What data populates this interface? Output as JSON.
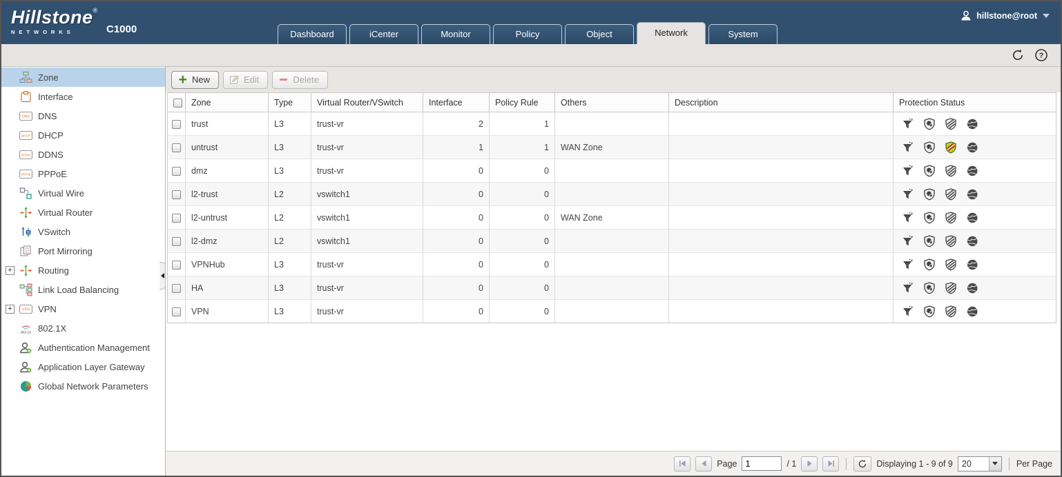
{
  "header": {
    "brand_name": "Hillstone",
    "brand_trademark": "®",
    "brand_sub": "NETWORKS",
    "model": "C1000",
    "user": "hillstone@root",
    "user_icon": "user-icon",
    "tabs": [
      {
        "label": "Dashboard",
        "active": false
      },
      {
        "label": "iCenter",
        "active": false
      },
      {
        "label": "Monitor",
        "active": false
      },
      {
        "label": "Policy",
        "active": false
      },
      {
        "label": "Object",
        "active": false
      },
      {
        "label": "Network",
        "active": true
      },
      {
        "label": "System",
        "active": false
      }
    ]
  },
  "substrip": {
    "icons": [
      "refresh-icon",
      "help-icon"
    ]
  },
  "sidebar": {
    "items": [
      {
        "label": "Zone",
        "icon": "zone-icon",
        "selected": true
      },
      {
        "label": "Interface",
        "icon": "interface-icon"
      },
      {
        "label": "DNS",
        "icon": "dns-box-icon"
      },
      {
        "label": "DHCP",
        "icon": "dhcp-box-icon"
      },
      {
        "label": "DDNS",
        "icon": "ddns-box-icon"
      },
      {
        "label": "PPPoE",
        "icon": "pppoe-box-icon"
      },
      {
        "label": "Virtual Wire",
        "icon": "virtual-wire-icon"
      },
      {
        "label": "Virtual Router",
        "icon": "virtual-router-icon"
      },
      {
        "label": "VSwitch",
        "icon": "vswitch-icon"
      },
      {
        "label": "Port Mirroring",
        "icon": "port-mirroring-icon"
      },
      {
        "label": "Routing",
        "icon": "routing-icon",
        "expandable": true
      },
      {
        "label": "Link Load Balancing",
        "icon": "link-load-balancing-icon"
      },
      {
        "label": "VPN",
        "icon": "vpn-box-icon",
        "expandable": true
      },
      {
        "label": "802.1X",
        "icon": "dot1x-icon"
      },
      {
        "label": "Authentication Management",
        "icon": "auth-management-icon"
      },
      {
        "label": "Application Layer Gateway",
        "icon": "app-layer-gateway-icon"
      },
      {
        "label": "Global Network Parameters",
        "icon": "global-network-params-icon"
      }
    ]
  },
  "toolbar": {
    "new_label": "New",
    "edit_label": "Edit",
    "delete_label": "Delete"
  },
  "table": {
    "columns": [
      "Zone",
      "Type",
      "Virtual Router/VSwitch",
      "Interface",
      "Policy Rule",
      "Others",
      "Description",
      "Protection Status"
    ],
    "protection_icons": [
      "traffic-funnel-icon",
      "antivirus-shield-icon",
      "ips-shield-icon",
      "url-filter-globe-icon"
    ],
    "rows": [
      {
        "zone": "trust",
        "type": "L3",
        "vr": "trust-vr",
        "interface": "2",
        "policy_rule": "1",
        "others": "",
        "description": "",
        "protection": [
          "off",
          "off",
          "off",
          "off"
        ]
      },
      {
        "zone": "untrust",
        "type": "L3",
        "vr": "trust-vr",
        "interface": "1",
        "policy_rule": "1",
        "others": "WAN Zone",
        "description": "",
        "protection": [
          "off",
          "off",
          "on",
          "off"
        ]
      },
      {
        "zone": "dmz",
        "type": "L3",
        "vr": "trust-vr",
        "interface": "0",
        "policy_rule": "0",
        "others": "",
        "description": "",
        "protection": [
          "off",
          "off",
          "off",
          "off"
        ]
      },
      {
        "zone": "l2-trust",
        "type": "L2",
        "vr": "vswitch1",
        "interface": "0",
        "policy_rule": "0",
        "others": "",
        "description": "",
        "protection": [
          "off",
          "off",
          "off",
          "off"
        ]
      },
      {
        "zone": "l2-untrust",
        "type": "L2",
        "vr": "vswitch1",
        "interface": "0",
        "policy_rule": "0",
        "others": "WAN Zone",
        "description": "",
        "protection": [
          "off",
          "off",
          "off",
          "off"
        ]
      },
      {
        "zone": "l2-dmz",
        "type": "L2",
        "vr": "vswitch1",
        "interface": "0",
        "policy_rule": "0",
        "others": "",
        "description": "",
        "protection": [
          "off",
          "off",
          "off",
          "off"
        ]
      },
      {
        "zone": "VPNHub",
        "type": "L3",
        "vr": "trust-vr",
        "interface": "0",
        "policy_rule": "0",
        "others": "",
        "description": "",
        "protection": [
          "off",
          "off",
          "off",
          "off"
        ]
      },
      {
        "zone": "HA",
        "type": "L3",
        "vr": "trust-vr",
        "interface": "0",
        "policy_rule": "0",
        "others": "",
        "description": "",
        "protection": [
          "off",
          "off",
          "off",
          "off"
        ]
      },
      {
        "zone": "VPN",
        "type": "L3",
        "vr": "trust-vr",
        "interface": "0",
        "policy_rule": "0",
        "others": "",
        "description": "",
        "protection": [
          "off",
          "off",
          "off",
          "off"
        ]
      }
    ]
  },
  "pagination": {
    "page_label": "Page",
    "page_value": "1",
    "page_total": "/ 1",
    "displaying": "Displaying 1 - 9 of 9",
    "per_page_value": "20",
    "per_page_label": "Per Page"
  },
  "colors": {
    "header_bg": "#315070",
    "tab_bg": "#2b4965",
    "active_tab_bg": "#e6e4e2",
    "selected_item_bg": "#b9d3ea",
    "accent_green": "#3c8a24",
    "delete_red": "#d9534f",
    "ips_on_fill": "#b6d433",
    "ips_on_stripe": "#cc2222"
  }
}
